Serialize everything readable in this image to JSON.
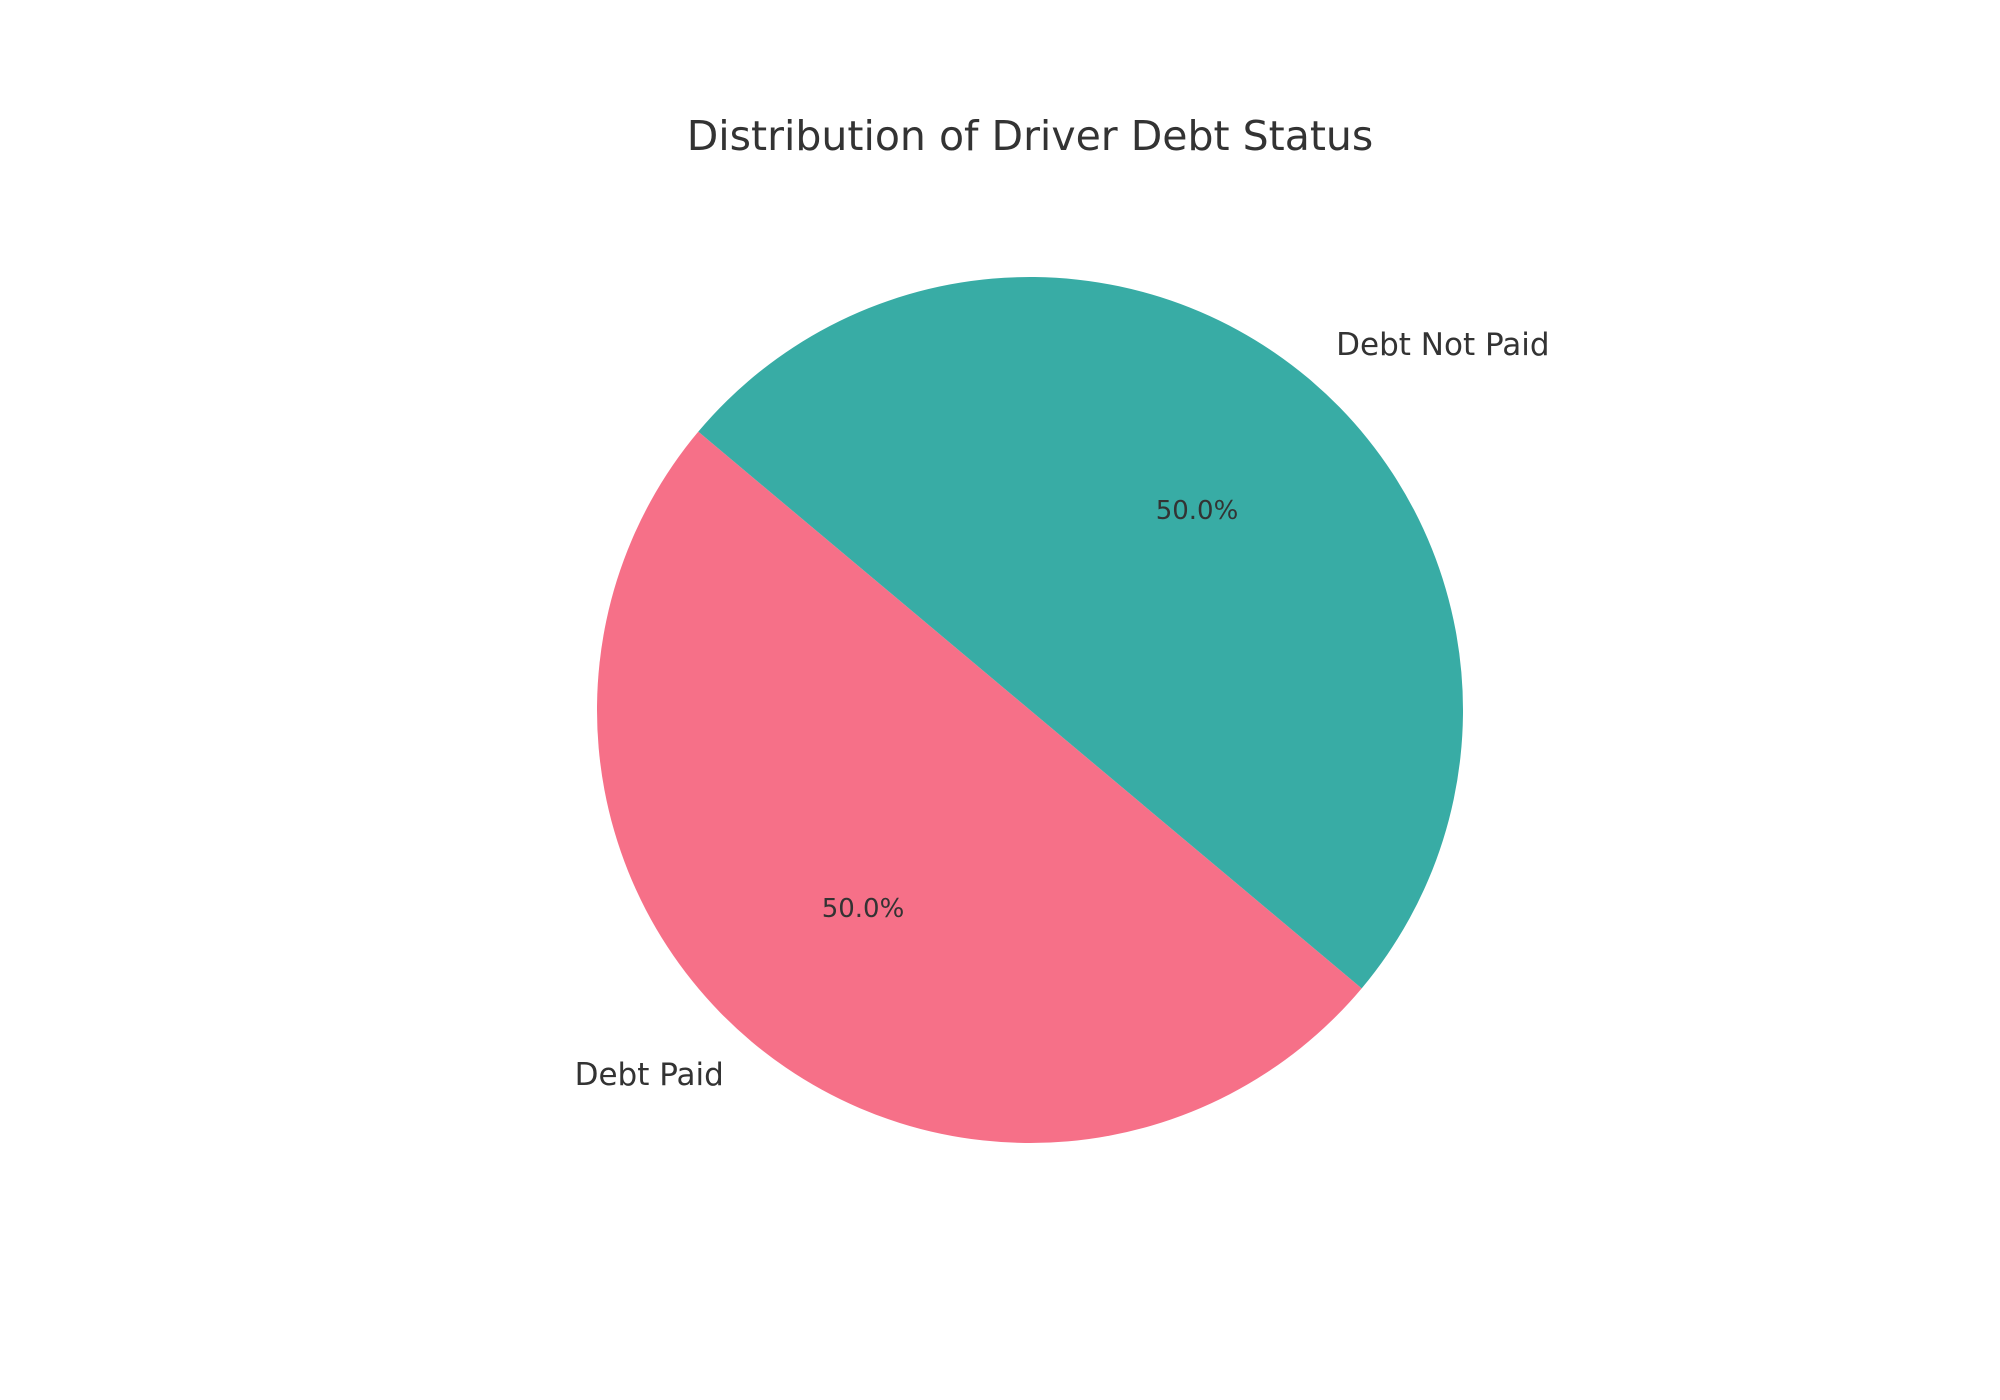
{
  "chart_data": {
    "type": "pie",
    "title": "Distribution of Driver Debt Status",
    "slices": [
      {
        "label": "Debt Paid",
        "value": 50.0,
        "pct_label": "50.0%",
        "color": "#f67088"
      },
      {
        "label": "Debt Not Paid",
        "value": 50.0,
        "pct_label": "50.0%",
        "color": "#38aca5"
      }
    ],
    "start_angle_deg": 140,
    "direction": "counterclockwise",
    "legend": "none"
  }
}
